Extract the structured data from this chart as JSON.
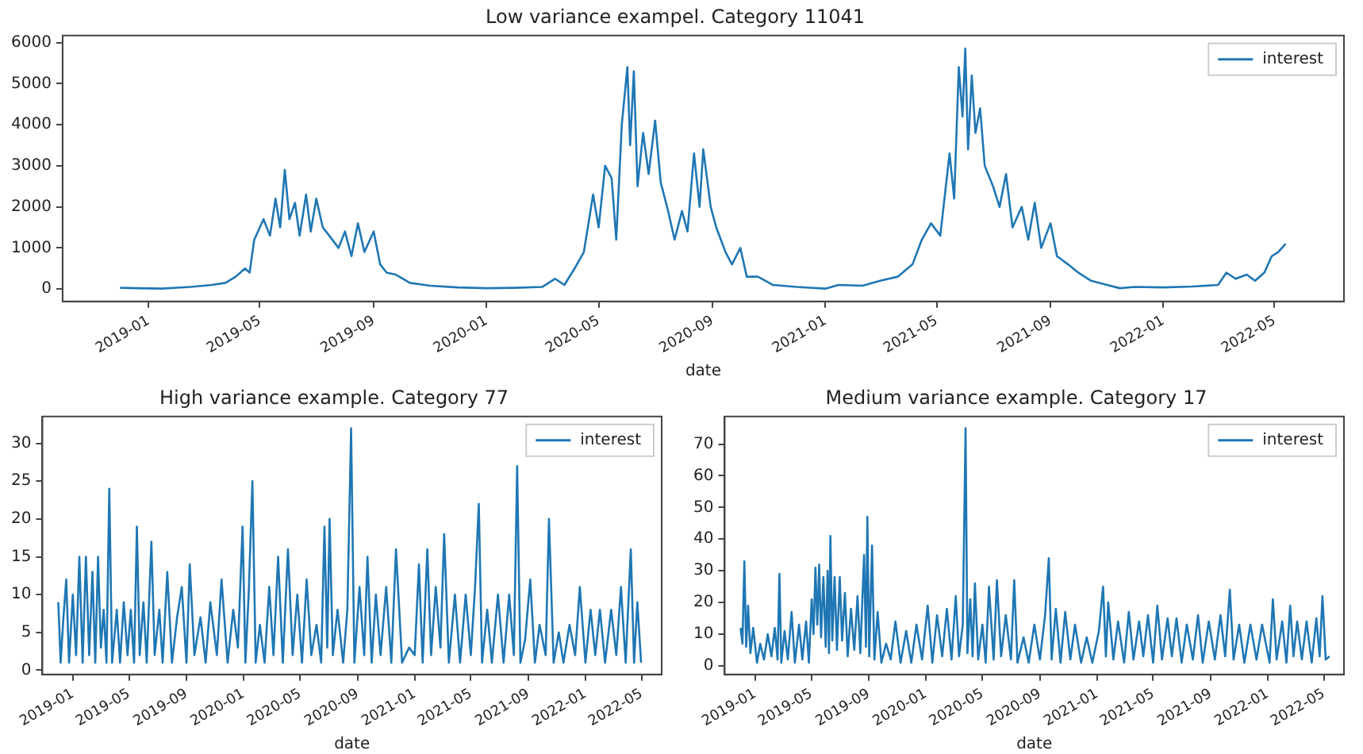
{
  "chart_data": [
    {
      "type": "line",
      "title": "Low variance exampel. Category 11041",
      "xlabel": "date",
      "legend": "top right",
      "grid": false,
      "xlim": [
        "2018-09-30",
        "2022-07-15"
      ],
      "ylim": [
        -300,
        6170
      ],
      "xticks": [
        "2019-01",
        "2019-05",
        "2019-09",
        "2020-01",
        "2020-05",
        "2020-09",
        "2021-01",
        "2021-05",
        "2021-09",
        "2022-01",
        "2022-05"
      ],
      "yticks": [
        0,
        1000,
        2000,
        3000,
        4000,
        5000,
        6000
      ],
      "series": [
        {
          "name": "interest",
          "color": "#1f77b4",
          "x": [
            "2018-12-01",
            "2018-12-20",
            "2019-01-15",
            "2019-02-15",
            "2019-03-10",
            "2019-03-25",
            "2019-04-05",
            "2019-04-15",
            "2019-04-20",
            "2019-04-25",
            "2019-05-05",
            "2019-05-12",
            "2019-05-18",
            "2019-05-23",
            "2019-05-28",
            "2019-06-02",
            "2019-06-08",
            "2019-06-13",
            "2019-06-20",
            "2019-06-25",
            "2019-07-01",
            "2019-07-08",
            "2019-07-15",
            "2019-07-25",
            "2019-08-01",
            "2019-08-08",
            "2019-08-15",
            "2019-08-22",
            "2019-09-01",
            "2019-09-08",
            "2019-09-15",
            "2019-09-25",
            "2019-10-10",
            "2019-11-01",
            "2019-12-01",
            "2020-01-01",
            "2020-02-01",
            "2020-03-01",
            "2020-03-15",
            "2020-03-25",
            "2020-04-05",
            "2020-04-15",
            "2020-04-25",
            "2020-05-01",
            "2020-05-08",
            "2020-05-15",
            "2020-05-20",
            "2020-05-26",
            "2020-06-01",
            "2020-06-04",
            "2020-06-08",
            "2020-06-12",
            "2020-06-18",
            "2020-06-24",
            "2020-07-01",
            "2020-07-07",
            "2020-07-15",
            "2020-07-22",
            "2020-07-30",
            "2020-08-05",
            "2020-08-12",
            "2020-08-18",
            "2020-08-22",
            "2020-08-30",
            "2020-09-05",
            "2020-09-15",
            "2020-09-22",
            "2020-10-01",
            "2020-10-08",
            "2020-10-20",
            "2020-11-05",
            "2020-12-01",
            "2021-01-01",
            "2021-01-15",
            "2021-02-10",
            "2021-03-01",
            "2021-03-20",
            "2021-04-05",
            "2021-04-15",
            "2021-04-25",
            "2021-05-05",
            "2021-05-15",
            "2021-05-20",
            "2021-05-25",
            "2021-05-29",
            "2021-06-01",
            "2021-06-04",
            "2021-06-08",
            "2021-06-12",
            "2021-06-17",
            "2021-06-22",
            "2021-07-01",
            "2021-07-08",
            "2021-07-15",
            "2021-07-22",
            "2021-08-01",
            "2021-08-08",
            "2021-08-15",
            "2021-08-22",
            "2021-09-01",
            "2021-09-08",
            "2021-09-20",
            "2021-10-01",
            "2021-10-15",
            "2021-11-01",
            "2021-11-15",
            "2021-12-01",
            "2022-01-01",
            "2022-02-01",
            "2022-03-01",
            "2022-03-10",
            "2022-03-20",
            "2022-04-01",
            "2022-04-10",
            "2022-04-20",
            "2022-04-28",
            "2022-05-05",
            "2022-05-13"
          ],
          "values": [
            30,
            20,
            10,
            50,
            100,
            150,
            300,
            500,
            400,
            1200,
            1700,
            1300,
            2200,
            1500,
            2900,
            1700,
            2100,
            1300,
            2300,
            1400,
            2200,
            1500,
            1300,
            1000,
            1400,
            800,
            1600,
            900,
            1400,
            600,
            400,
            350,
            150,
            80,
            40,
            20,
            30,
            50,
            250,
            100,
            500,
            900,
            2300,
            1500,
            3000,
            2700,
            1200,
            4000,
            5400,
            3500,
            5300,
            2500,
            3800,
            2800,
            4100,
            2600,
            1900,
            1200,
            1900,
            1400,
            3300,
            2000,
            3400,
            2000,
            1500,
            900,
            600,
            1000,
            300,
            300,
            100,
            50,
            10,
            100,
            80,
            200,
            300,
            600,
            1200,
            1600,
            1300,
            3300,
            2200,
            5400,
            4200,
            5850,
            3400,
            5200,
            3800,
            4400,
            3000,
            2500,
            2000,
            2800,
            1500,
            2000,
            1200,
            2100,
            1000,
            1600,
            800,
            600,
            400,
            200,
            100,
            20,
            50,
            40,
            60,
            100,
            400,
            250,
            350,
            200,
            400,
            800,
            900,
            1100
          ]
        }
      ]
    },
    {
      "type": "line",
      "title": "High variance example. Category 77",
      "xlabel": "date",
      "legend": "top right",
      "grid": false,
      "xlim": [
        "2018-10-28",
        "2022-06-13"
      ],
      "ylim": [
        -0.55,
        33.55
      ],
      "xticks": [
        "2019-01",
        "2019-05",
        "2019-09",
        "2020-01",
        "2020-05",
        "2020-09",
        "2021-01",
        "2021-05",
        "2021-09",
        "2022-01",
        "2022-05"
      ],
      "yticks": [
        0,
        5,
        10,
        15,
        20,
        25,
        30
      ],
      "series": [
        {
          "name": "interest",
          "color": "#1f77b4",
          "x": [
            "2018-12-01",
            "2018-12-06",
            "2018-12-12",
            "2018-12-18",
            "2018-12-24",
            "2019-01-01",
            "2019-01-08",
            "2019-01-15",
            "2019-01-22",
            "2019-01-29",
            "2019-02-05",
            "2019-02-12",
            "2019-02-18",
            "2019-02-24",
            "2019-03-02",
            "2019-03-08",
            "2019-03-14",
            "2019-03-20",
            "2019-03-26",
            "2019-04-05",
            "2019-04-12",
            "2019-04-20",
            "2019-04-28",
            "2019-05-05",
            "2019-05-12",
            "2019-05-18",
            "2019-05-24",
            "2019-06-01",
            "2019-06-08",
            "2019-06-18",
            "2019-06-25",
            "2019-07-05",
            "2019-07-12",
            "2019-07-22",
            "2019-08-01",
            "2019-08-12",
            "2019-08-22",
            "2019-09-01",
            "2019-09-08",
            "2019-09-18",
            "2019-10-01",
            "2019-10-12",
            "2019-10-22",
            "2019-11-05",
            "2019-11-15",
            "2019-11-28",
            "2019-12-10",
            "2019-12-20",
            "2019-12-30",
            "2020-01-05",
            "2020-01-12",
            "2020-01-20",
            "2020-01-27",
            "2020-02-05",
            "2020-02-15",
            "2020-02-25",
            "2020-03-05",
            "2020-03-15",
            "2020-03-25",
            "2020-04-05",
            "2020-04-15",
            "2020-04-25",
            "2020-05-05",
            "2020-05-15",
            "2020-05-25",
            "2020-06-05",
            "2020-06-15",
            "2020-06-22",
            "2020-06-28",
            "2020-07-03",
            "2020-07-10",
            "2020-07-20",
            "2020-08-01",
            "2020-08-10",
            "2020-08-18",
            "2020-08-25",
            "2020-09-05",
            "2020-09-15",
            "2020-09-22",
            "2020-10-01",
            "2020-10-10",
            "2020-10-20",
            "2020-11-01",
            "2020-11-12",
            "2020-11-22",
            "2020-12-05",
            "2020-12-20",
            "2021-01-01",
            "2021-01-10",
            "2021-01-18",
            "2021-01-28",
            "2021-02-05",
            "2021-02-15",
            "2021-02-25",
            "2021-03-05",
            "2021-03-15",
            "2021-03-28",
            "2021-04-08",
            "2021-04-20",
            "2021-05-01",
            "2021-05-10",
            "2021-05-18",
            "2021-05-25",
            "2021-06-05",
            "2021-06-15",
            "2021-06-28",
            "2021-07-10",
            "2021-07-22",
            "2021-08-01",
            "2021-08-08",
            "2021-08-15",
            "2021-08-25",
            "2021-09-05",
            "2021-09-15",
            "2021-09-25",
            "2021-10-08",
            "2021-10-15",
            "2021-10-25",
            "2021-11-05",
            "2021-11-15",
            "2021-11-28",
            "2021-12-10",
            "2021-12-20",
            "2022-01-01",
            "2022-01-12",
            "2022-01-22",
            "2022-02-01",
            "2022-02-12",
            "2022-02-25",
            "2022-03-08",
            "2022-03-18",
            "2022-03-28",
            "2022-04-08",
            "2022-04-15",
            "2022-04-22",
            "2022-04-30"
          ],
          "values": [
            9,
            1,
            7,
            12,
            1,
            10,
            2,
            15,
            1,
            15,
            2,
            13,
            1,
            15,
            3,
            8,
            1,
            24,
            1,
            8,
            1,
            9,
            2,
            8,
            1,
            19,
            2,
            9,
            1,
            17,
            2,
            8,
            1,
            13,
            1,
            7,
            11,
            1,
            14,
            2,
            7,
            1,
            9,
            2,
            12,
            1,
            8,
            3,
            19,
            1,
            10,
            25,
            1,
            6,
            1,
            11,
            2,
            15,
            1,
            16,
            2,
            10,
            1,
            12,
            2,
            6,
            1,
            19,
            3,
            20,
            2,
            8,
            1,
            8,
            32,
            1,
            11,
            2,
            15,
            1,
            10,
            2,
            11,
            1,
            16,
            1,
            3,
            2,
            14,
            1,
            16,
            2,
            11,
            3,
            18,
            1,
            10,
            1,
            10,
            2,
            11,
            22,
            1,
            8,
            1,
            10,
            1,
            10,
            2,
            27,
            1,
            4,
            12,
            1,
            6,
            2,
            20,
            1,
            5,
            1,
            6,
            2,
            11,
            1,
            8,
            2,
            8,
            1,
            8,
            2,
            11,
            1,
            16,
            1,
            9,
            1
          ]
        }
      ]
    },
    {
      "type": "line",
      "title": "Medium variance example. Category 17",
      "xlabel": "date",
      "legend": "top right",
      "grid": false,
      "xlim": [
        "2018-10-28",
        "2022-06-13"
      ],
      "ylim": [
        -2.7,
        78.7
      ],
      "xticks": [
        "2019-01",
        "2019-05",
        "2019-09",
        "2020-01",
        "2020-05",
        "2020-09",
        "2021-01",
        "2021-05",
        "2021-09",
        "2022-01",
        "2022-05"
      ],
      "yticks": [
        0,
        10,
        20,
        30,
        40,
        50,
        60,
        70
      ],
      "series": [
        {
          "name": "interest",
          "color": "#1f77b4",
          "x": [
            "2018-12-01",
            "2018-12-05",
            "2018-12-09",
            "2018-12-13",
            "2018-12-17",
            "2018-12-22",
            "2018-12-28",
            "2019-01-05",
            "2019-01-12",
            "2019-01-20",
            "2019-01-28",
            "2019-02-05",
            "2019-02-12",
            "2019-02-18",
            "2019-02-22",
            "2019-02-26",
            "2019-03-05",
            "2019-03-12",
            "2019-03-20",
            "2019-03-27",
            "2019-04-05",
            "2019-04-12",
            "2019-04-20",
            "2019-04-26",
            "2019-05-02",
            "2019-05-06",
            "2019-05-10",
            "2019-05-14",
            "2019-05-18",
            "2019-05-22",
            "2019-05-27",
            "2019-06-01",
            "2019-06-05",
            "2019-06-08",
            "2019-06-11",
            "2019-06-15",
            "2019-06-20",
            "2019-06-25",
            "2019-07-01",
            "2019-07-06",
            "2019-07-12",
            "2019-07-18",
            "2019-07-25",
            "2019-08-01",
            "2019-08-08",
            "2019-08-14",
            "2019-08-22",
            "2019-08-26",
            "2019-08-29",
            "2019-09-02",
            "2019-09-08",
            "2019-09-13",
            "2019-09-20",
            "2019-09-28",
            "2019-10-08",
            "2019-10-18",
            "2019-10-28",
            "2019-11-08",
            "2019-11-20",
            "2019-12-01",
            "2019-12-12",
            "2019-12-24",
            "2020-01-05",
            "2020-01-15",
            "2020-01-25",
            "2020-02-05",
            "2020-02-15",
            "2020-02-25",
            "2020-03-05",
            "2020-03-12",
            "2020-03-20",
            "2020-03-26",
            "2020-03-30",
            "2020-04-05",
            "2020-04-10",
            "2020-04-15",
            "2020-04-22",
            "2020-05-01",
            "2020-05-08",
            "2020-05-15",
            "2020-05-25",
            "2020-06-01",
            "2020-06-10",
            "2020-06-20",
            "2020-07-01",
            "2020-07-08",
            "2020-07-15",
            "2020-07-28",
            "2020-08-08",
            "2020-08-20",
            "2020-09-01",
            "2020-09-12",
            "2020-09-20",
            "2020-09-26",
            "2020-10-05",
            "2020-10-15",
            "2020-10-25",
            "2020-11-05",
            "2020-11-15",
            "2020-11-28",
            "2020-12-10",
            "2020-12-22",
            "2021-01-05",
            "2021-01-14",
            "2021-01-20",
            "2021-01-25",
            "2021-02-05",
            "2021-02-15",
            "2021-02-28",
            "2021-03-10",
            "2021-03-20",
            "2021-04-01",
            "2021-04-10",
            "2021-04-20",
            "2021-05-01",
            "2021-05-10",
            "2021-05-20",
            "2021-06-01",
            "2021-06-10",
            "2021-06-20",
            "2021-07-01",
            "2021-07-12",
            "2021-07-25",
            "2021-08-05",
            "2021-08-15",
            "2021-08-28",
            "2021-09-10",
            "2021-09-22",
            "2021-10-02",
            "2021-10-12",
            "2021-10-20",
            "2021-11-01",
            "2021-11-12",
            "2021-11-25",
            "2021-12-08",
            "2021-12-20",
            "2022-01-05",
            "2022-01-12",
            "2022-01-20",
            "2022-02-01",
            "2022-02-10",
            "2022-02-18",
            "2022-02-25",
            "2022-03-05",
            "2022-03-15",
            "2022-03-25",
            "2022-04-05",
            "2022-04-15",
            "2022-04-22",
            "2022-04-28",
            "2022-05-05",
            "2022-05-13"
          ],
          "values": [
            12,
            7,
            33,
            6,
            19,
            4,
            12,
            1,
            7,
            2,
            10,
            3,
            12,
            2,
            29,
            1,
            11,
            2,
            17,
            1,
            13,
            2,
            14,
            1,
            21,
            10,
            31,
            13,
            32,
            9,
            28,
            6,
            30,
            4,
            41,
            8,
            28,
            5,
            28,
            8,
            23,
            3,
            18,
            5,
            22,
            4,
            35,
            6,
            47,
            3,
            38,
            2,
            17,
            1,
            7,
            2,
            14,
            1,
            11,
            1,
            13,
            2,
            19,
            1,
            16,
            3,
            18,
            2,
            22,
            3,
            13,
            75,
            4,
            21,
            3,
            26,
            2,
            13,
            1,
            25,
            2,
            27,
            3,
            16,
            2,
            27,
            1,
            9,
            1,
            13,
            2,
            16,
            34,
            2,
            18,
            1,
            17,
            2,
            13,
            1,
            9,
            1,
            11,
            25,
            3,
            20,
            2,
            14,
            1,
            17,
            2,
            14,
            3,
            16,
            1,
            19,
            2,
            15,
            3,
            15,
            1,
            13,
            2,
            16,
            1,
            14,
            2,
            16,
            3,
            24,
            2,
            13,
            1,
            13,
            2,
            13,
            1,
            21,
            2,
            14,
            1,
            19,
            3,
            14,
            2,
            14,
            1,
            15,
            3,
            22,
            2,
            3
          ]
        }
      ]
    }
  ]
}
